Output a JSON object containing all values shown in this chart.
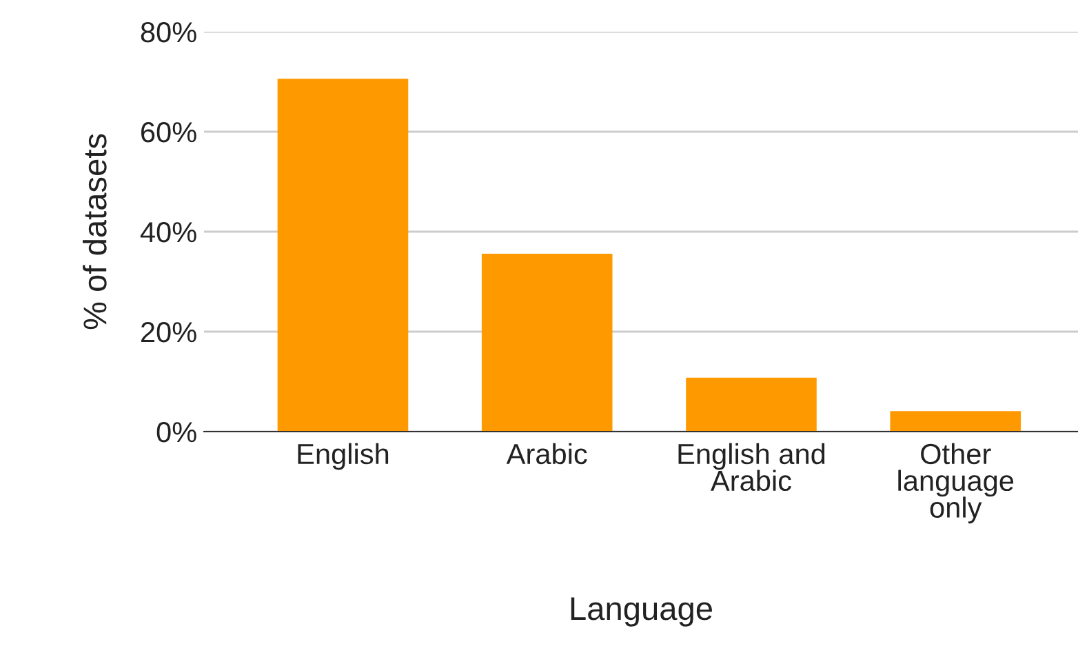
{
  "chart_data": {
    "type": "bar",
    "xlabel": "Language",
    "ylabel": "% of datasets",
    "categories": [
      "English",
      "Arabic",
      "English and\nArabic",
      "Other\nlanguage\nonly"
    ],
    "values": [
      70.6,
      35.6,
      10.8,
      4.1
    ],
    "color": "#ff9900",
    "ylim": [
      0,
      80
    ],
    "yticks": [
      {
        "value": 0,
        "label": "0%"
      },
      {
        "value": 20,
        "label": "20%"
      },
      {
        "value": 40,
        "label": "40%"
      },
      {
        "value": 60,
        "label": "60%"
      },
      {
        "value": 80,
        "label": "80%"
      }
    ],
    "grid": "y"
  }
}
